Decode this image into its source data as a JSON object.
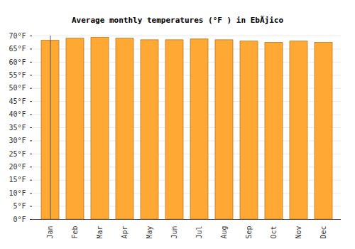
{
  "chart_data": {
    "type": "bar",
    "title": "Average monthly temperatures (°F ) in EbÃjico",
    "categories": [
      "Jan",
      "Feb",
      "Mar",
      "Apr",
      "May",
      "Jun",
      "Jul",
      "Aug",
      "Sep",
      "Oct",
      "Nov",
      "Dec"
    ],
    "values": [
      68.2,
      69.0,
      69.3,
      69.0,
      68.4,
      68.4,
      68.7,
      68.4,
      67.9,
      67.4,
      67.9,
      67.4
    ],
    "color": "#ffa834",
    "ylim": [
      0,
      70
    ],
    "yticks": [
      {
        "value": 0,
        "label": "0°F"
      },
      {
        "value": 5,
        "label": "5°F"
      },
      {
        "value": 10,
        "label": "10°F"
      },
      {
        "value": 15,
        "label": "15°F"
      },
      {
        "value": 20,
        "label": "20°F"
      },
      {
        "value": 25,
        "label": "25°F"
      },
      {
        "value": 30,
        "label": "30°F"
      },
      {
        "value": 35,
        "label": "35°F"
      },
      {
        "value": 40,
        "label": "40°F"
      },
      {
        "value": 45,
        "label": "45°F"
      },
      {
        "value": 50,
        "label": "50°F"
      },
      {
        "value": 55,
        "label": "55°F"
      },
      {
        "value": 60,
        "label": "60°F"
      },
      {
        "value": 65,
        "label": "65°F"
      },
      {
        "value": 70,
        "label": "70°F"
      }
    ],
    "grid": true
  }
}
